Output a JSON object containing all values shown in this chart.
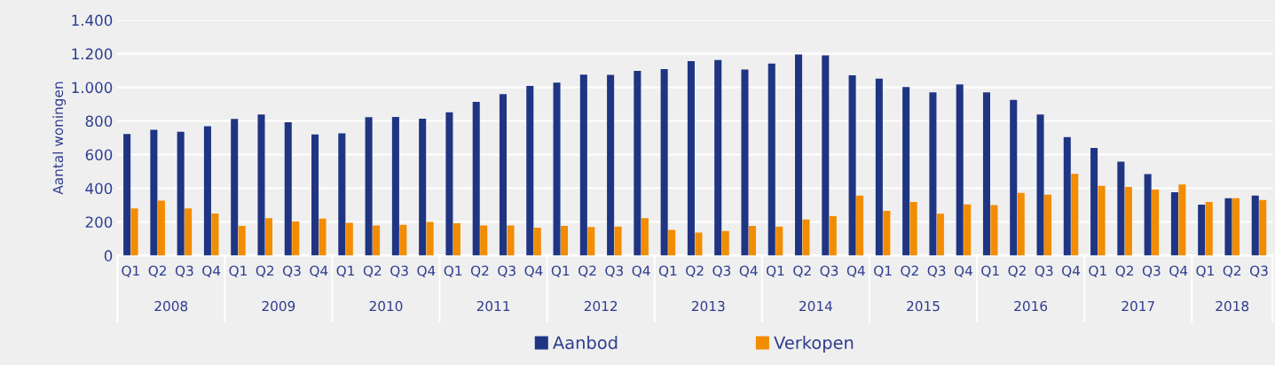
{
  "chart_data": {
    "type": "bar",
    "ylabel": "Aantal woningen",
    "categories": [
      "Q1",
      "Q2",
      "Q3",
      "Q4",
      "Q1",
      "Q2",
      "Q3",
      "Q4",
      "Q1",
      "Q2",
      "Q3",
      "Q4",
      "Q1",
      "Q2",
      "Q3",
      "Q4",
      "Q1",
      "Q2",
      "Q3",
      "Q4",
      "Q1",
      "Q2",
      "Q3",
      "Q4",
      "Q1",
      "Q2",
      "Q3",
      "Q4",
      "Q1",
      "Q2",
      "Q3",
      "Q4",
      "Q1",
      "Q2",
      "Q3",
      "Q4",
      "Q1",
      "Q2",
      "Q3",
      "Q4",
      "Q1",
      "Q2",
      "Q3"
    ],
    "annotations": [
      "2008",
      "2009",
      "2010",
      "2011",
      "2012",
      "2013",
      "2014",
      "2015",
      "2016",
      "2017",
      "2018"
    ],
    "series": [
      {
        "name": "Aanbod",
        "color": "#1f3583",
        "values": [
          722,
          748,
          736,
          768,
          812,
          838,
          792,
          720,
          726,
          822,
          824,
          814,
          852,
          914,
          960,
          1008,
          1028,
          1076,
          1074,
          1098,
          1108,
          1156,
          1162,
          1106,
          1142,
          1196,
          1190,
          1072,
          1052,
          1002,
          970,
          1018,
          970,
          926,
          838,
          704,
          640,
          558,
          484,
          376,
          302,
          340,
          356
        ]
      },
      {
        "name": "Verkopen",
        "color": "#f28c00",
        "values": [
          280,
          326,
          280,
          250,
          176,
          222,
          202,
          220,
          194,
          178,
          182,
          200,
          192,
          178,
          178,
          166,
          176,
          170,
          172,
          222,
          152,
          136,
          146,
          176,
          172,
          214,
          234,
          356,
          266,
          318,
          248,
          304,
          300,
          372,
          362,
          486,
          414,
          408,
          392,
          422,
          318,
          340,
          330
        ]
      }
    ],
    "ylim": [
      0,
      1400
    ],
    "yticks": [
      {
        "value": 0,
        "label": "0"
      },
      {
        "value": 200,
        "label": "200"
      },
      {
        "value": 400,
        "label": "400"
      },
      {
        "value": 600,
        "label": "600"
      },
      {
        "value": 800,
        "label": "800"
      },
      {
        "value": 1000,
        "label": "1.000"
      },
      {
        "value": 1200,
        "label": "1.200"
      },
      {
        "value": 1400,
        "label": "1.400"
      }
    ],
    "grid": "y",
    "legend": "bottom"
  }
}
